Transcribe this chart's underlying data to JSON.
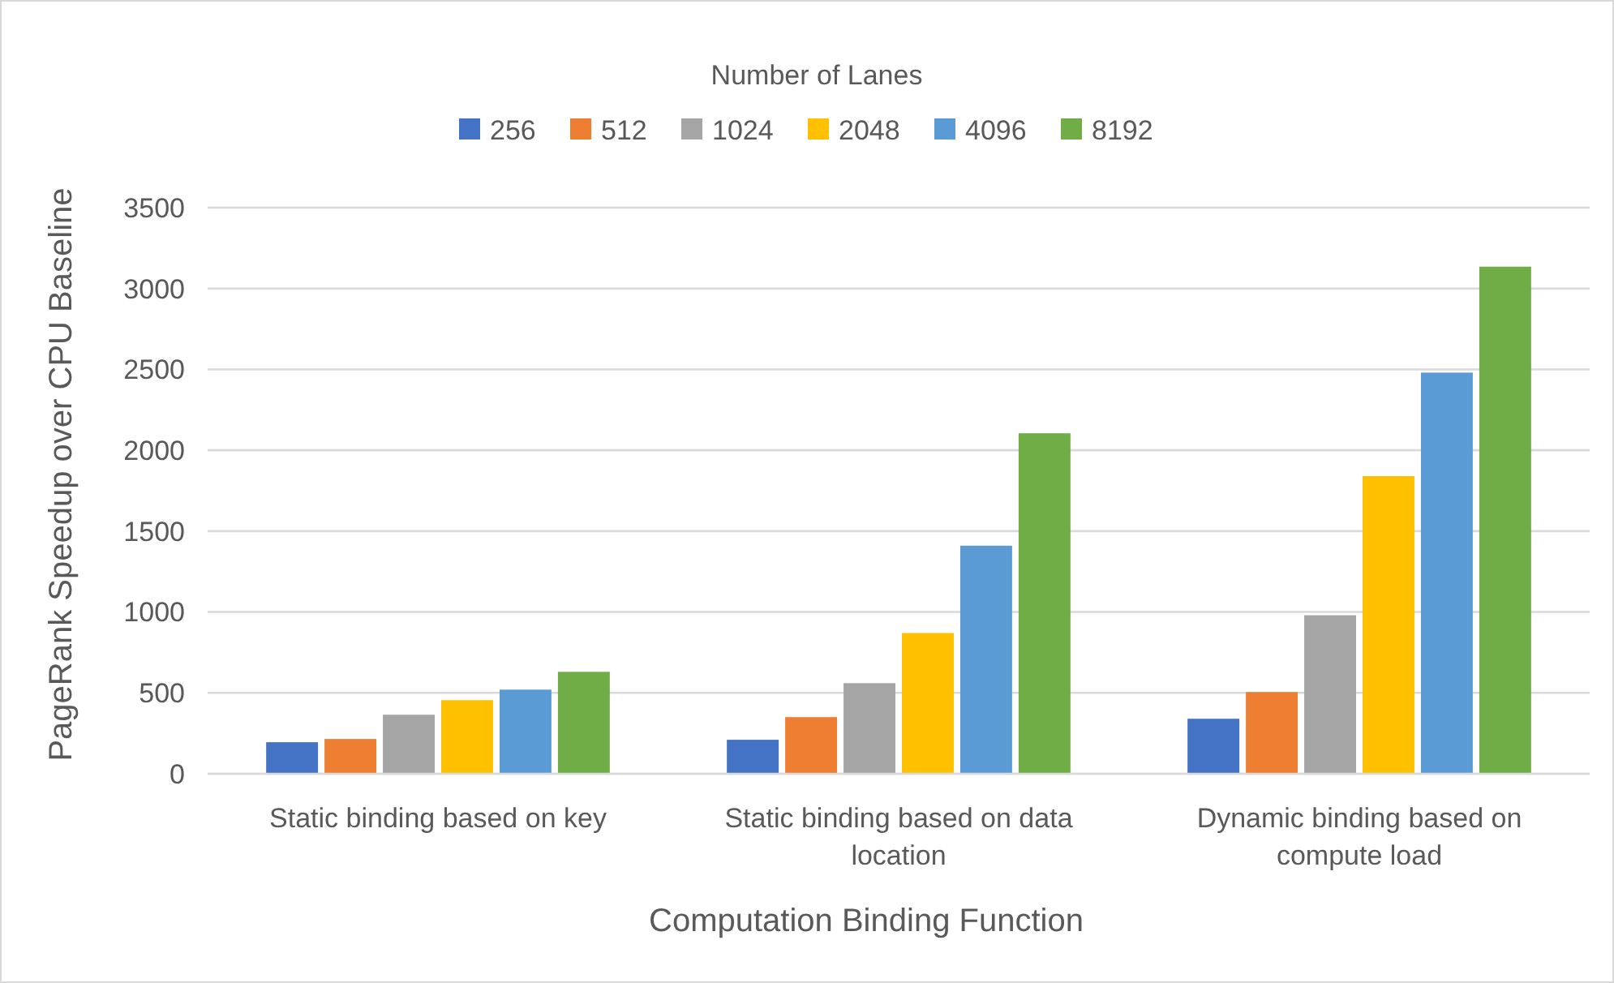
{
  "chart_data": {
    "type": "bar",
    "categories": [
      "Static binding based on key",
      "Static binding based on data location",
      "Dynamic binding based on compute load"
    ],
    "series": [
      {
        "name": "256",
        "color": "#4472c4",
        "values": [
          195,
          210,
          340
        ]
      },
      {
        "name": "512",
        "color": "#ed7d31",
        "values": [
          215,
          350,
          505
        ]
      },
      {
        "name": "1024",
        "color": "#a5a5a5",
        "values": [
          365,
          560,
          980
        ]
      },
      {
        "name": "2048",
        "color": "#ffc000",
        "values": [
          455,
          870,
          1840
        ]
      },
      {
        "name": "4096",
        "color": "#5b9bd5",
        "values": [
          520,
          1410,
          2480
        ]
      },
      {
        "name": "8192",
        "color": "#70ad47",
        "values": [
          630,
          2105,
          3135
        ]
      }
    ],
    "legend_title": "Number of Lanes",
    "legend": "top",
    "xlabel": "Computation Binding Function",
    "ylabel": "PageRank Speedup over CPU Baseline",
    "ylim": [
      0,
      3500
    ],
    "yticks": [
      0,
      500,
      1000,
      1500,
      2000,
      2500,
      3000,
      3500
    ],
    "grid": "y"
  }
}
